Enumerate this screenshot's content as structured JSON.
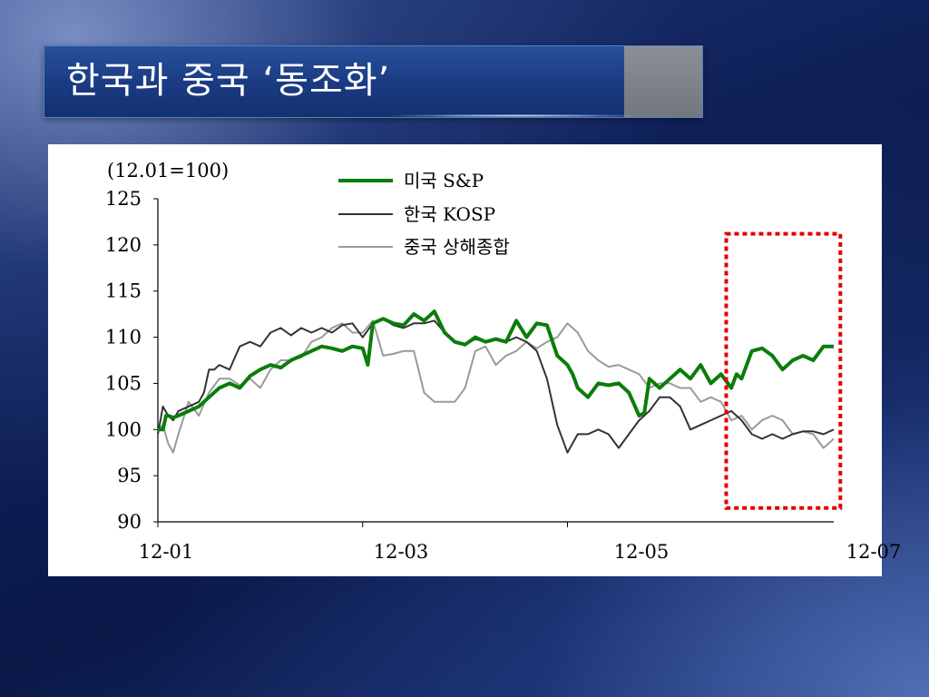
{
  "slide": {
    "title": "한국과 중국 ‘동조화’"
  },
  "chart_data": {
    "type": "line",
    "unit_note": "(12.01=100)",
    "ylim": [
      90,
      125
    ],
    "y_ticks": [
      90,
      95,
      100,
      105,
      110,
      115,
      120,
      125
    ],
    "x_ticks": [
      "12-01",
      "12-03",
      "12-05",
      "12-07"
    ],
    "xlim": [
      0,
      6.6
    ],
    "highlight_box": {
      "x_range": [
        5.55,
        6.7
      ],
      "y_range": [
        91.5,
        121.2
      ],
      "color": "#e00000"
    },
    "series": [
      {
        "name": "미국 S&P",
        "color": "#0a7d0a",
        "x": [
          0,
          0.05,
          0.08,
          0.1,
          0.15,
          0.2,
          0.3,
          0.4,
          0.5,
          0.6,
          0.7,
          0.8,
          0.9,
          1.0,
          1.1,
          1.2,
          1.3,
          1.4,
          1.5,
          1.6,
          1.7,
          1.8,
          1.9,
          2.0,
          2.05,
          2.1,
          2.2,
          2.3,
          2.4,
          2.5,
          2.6,
          2.7,
          2.8,
          2.9,
          3.0,
          3.1,
          3.2,
          3.3,
          3.4,
          3.5,
          3.6,
          3.7,
          3.8,
          3.9,
          4.0,
          4.05,
          4.1,
          4.2,
          4.3,
          4.4,
          4.5,
          4.6,
          4.7,
          4.75,
          4.8,
          4.9,
          5.0,
          5.1,
          5.2,
          5.3,
          5.4,
          5.5,
          5.6,
          5.65,
          5.7,
          5.8,
          5.9,
          6.0,
          6.1,
          6.2,
          6.3,
          6.4,
          6.5,
          6.6
        ],
        "y": [
          100,
          100,
          101.5,
          101.5,
          101.3,
          101.5,
          102,
          102.5,
          103.5,
          104.5,
          105,
          104.5,
          105.8,
          106.5,
          107,
          106.7,
          107.5,
          108,
          108.5,
          109,
          108.8,
          108.5,
          109,
          108.8,
          107,
          111.5,
          112,
          111.5,
          111.3,
          112.5,
          111.8,
          112.8,
          110.5,
          109.5,
          109.2,
          110,
          109.5,
          109.8,
          109.5,
          111.8,
          110,
          111.5,
          111.3,
          108,
          107,
          106,
          104.5,
          103.5,
          105,
          104.8,
          105,
          104,
          101.5,
          101.8,
          105.5,
          104.5,
          105.5,
          106.5,
          105.5,
          107,
          105,
          106,
          104.5,
          106,
          105.5,
          108.5,
          108.8,
          108,
          106.5,
          107.5,
          108,
          107.5,
          109,
          109
        ],
        "line_width": 4
      },
      {
        "name": "한국 KOSP",
        "color": "#333333",
        "x": [
          0,
          0.05,
          0.1,
          0.15,
          0.2,
          0.3,
          0.4,
          0.45,
          0.5,
          0.55,
          0.6,
          0.7,
          0.8,
          0.9,
          1.0,
          1.1,
          1.2,
          1.3,
          1.4,
          1.5,
          1.6,
          1.7,
          1.8,
          1.9,
          2.0,
          2.1,
          2.2,
          2.3,
          2.4,
          2.5,
          2.6,
          2.7,
          2.8,
          2.9,
          3.0,
          3.1,
          3.2,
          3.3,
          3.4,
          3.5,
          3.6,
          3.7,
          3.8,
          3.9,
          4.0,
          4.1,
          4.2,
          4.3,
          4.4,
          4.5,
          4.6,
          4.7,
          4.8,
          4.9,
          5.0,
          5.1,
          5.2,
          5.3,
          5.4,
          5.5,
          5.6,
          5.7,
          5.8,
          5.9,
          6.0,
          6.1,
          6.2,
          6.3,
          6.4,
          6.5,
          6.6
        ],
        "y": [
          99.5,
          102.5,
          101.5,
          101,
          102,
          102.5,
          103,
          104,
          106.5,
          106.5,
          107,
          106.5,
          109,
          109.5,
          109,
          110.5,
          111,
          110.2,
          111,
          110.5,
          111,
          110.5,
          111.3,
          111.5,
          110,
          111.5,
          112,
          111.3,
          111,
          111.5,
          111.5,
          111.8,
          110.5,
          109.5,
          109.2,
          109.8,
          109.5,
          109.8,
          109.5,
          110,
          109.5,
          108.5,
          105.5,
          100.5,
          97.5,
          99.5,
          99.5,
          100,
          99.5,
          98,
          99.5,
          101,
          102,
          103.5,
          103.5,
          102.5,
          100,
          100.5,
          101,
          101.5,
          102,
          101,
          99.5,
          99,
          99.5,
          99,
          99.5,
          99.8,
          99.8,
          99.5,
          100
        ]
      },
      {
        "name": "중국 상해종합",
        "color": "#9a9a9a",
        "x": [
          0,
          0.05,
          0.1,
          0.15,
          0.2,
          0.3,
          0.4,
          0.5,
          0.6,
          0.7,
          0.8,
          0.9,
          1.0,
          1.1,
          1.2,
          1.3,
          1.4,
          1.5,
          1.6,
          1.7,
          1.8,
          1.9,
          2.0,
          2.1,
          2.2,
          2.3,
          2.4,
          2.5,
          2.6,
          2.7,
          2.8,
          2.9,
          3.0,
          3.1,
          3.2,
          3.3,
          3.4,
          3.5,
          3.6,
          3.7,
          3.8,
          3.9,
          4.0,
          4.1,
          4.2,
          4.3,
          4.4,
          4.5,
          4.6,
          4.7,
          4.8,
          4.9,
          5.0,
          5.1,
          5.2,
          5.3,
          5.4,
          5.5,
          5.6,
          5.7,
          5.8,
          5.9,
          6.0,
          6.1,
          6.2,
          6.3,
          6.4,
          6.5,
          6.6
        ],
        "y": [
          100,
          100.5,
          98.5,
          97.5,
          99.5,
          103,
          101.5,
          104,
          105.5,
          105.5,
          104.8,
          105.5,
          104.5,
          106.5,
          107.5,
          107.5,
          107.8,
          109.5,
          110,
          111,
          111.5,
          110.5,
          110.5,
          111.8,
          108,
          108.2,
          108.5,
          108.5,
          104,
          103,
          103,
          103,
          104.5,
          108.5,
          109,
          107,
          108,
          108.5,
          109.5,
          108.8,
          109.5,
          110,
          111.5,
          110.5,
          108.5,
          107.5,
          106.8,
          107,
          106.5,
          106,
          104.5,
          105,
          105,
          104.5,
          104.5,
          103,
          103.5,
          103,
          101,
          101.5,
          100,
          101,
          101.5,
          101,
          99.5,
          99.8,
          99.5,
          98,
          99
        ]
      }
    ]
  }
}
